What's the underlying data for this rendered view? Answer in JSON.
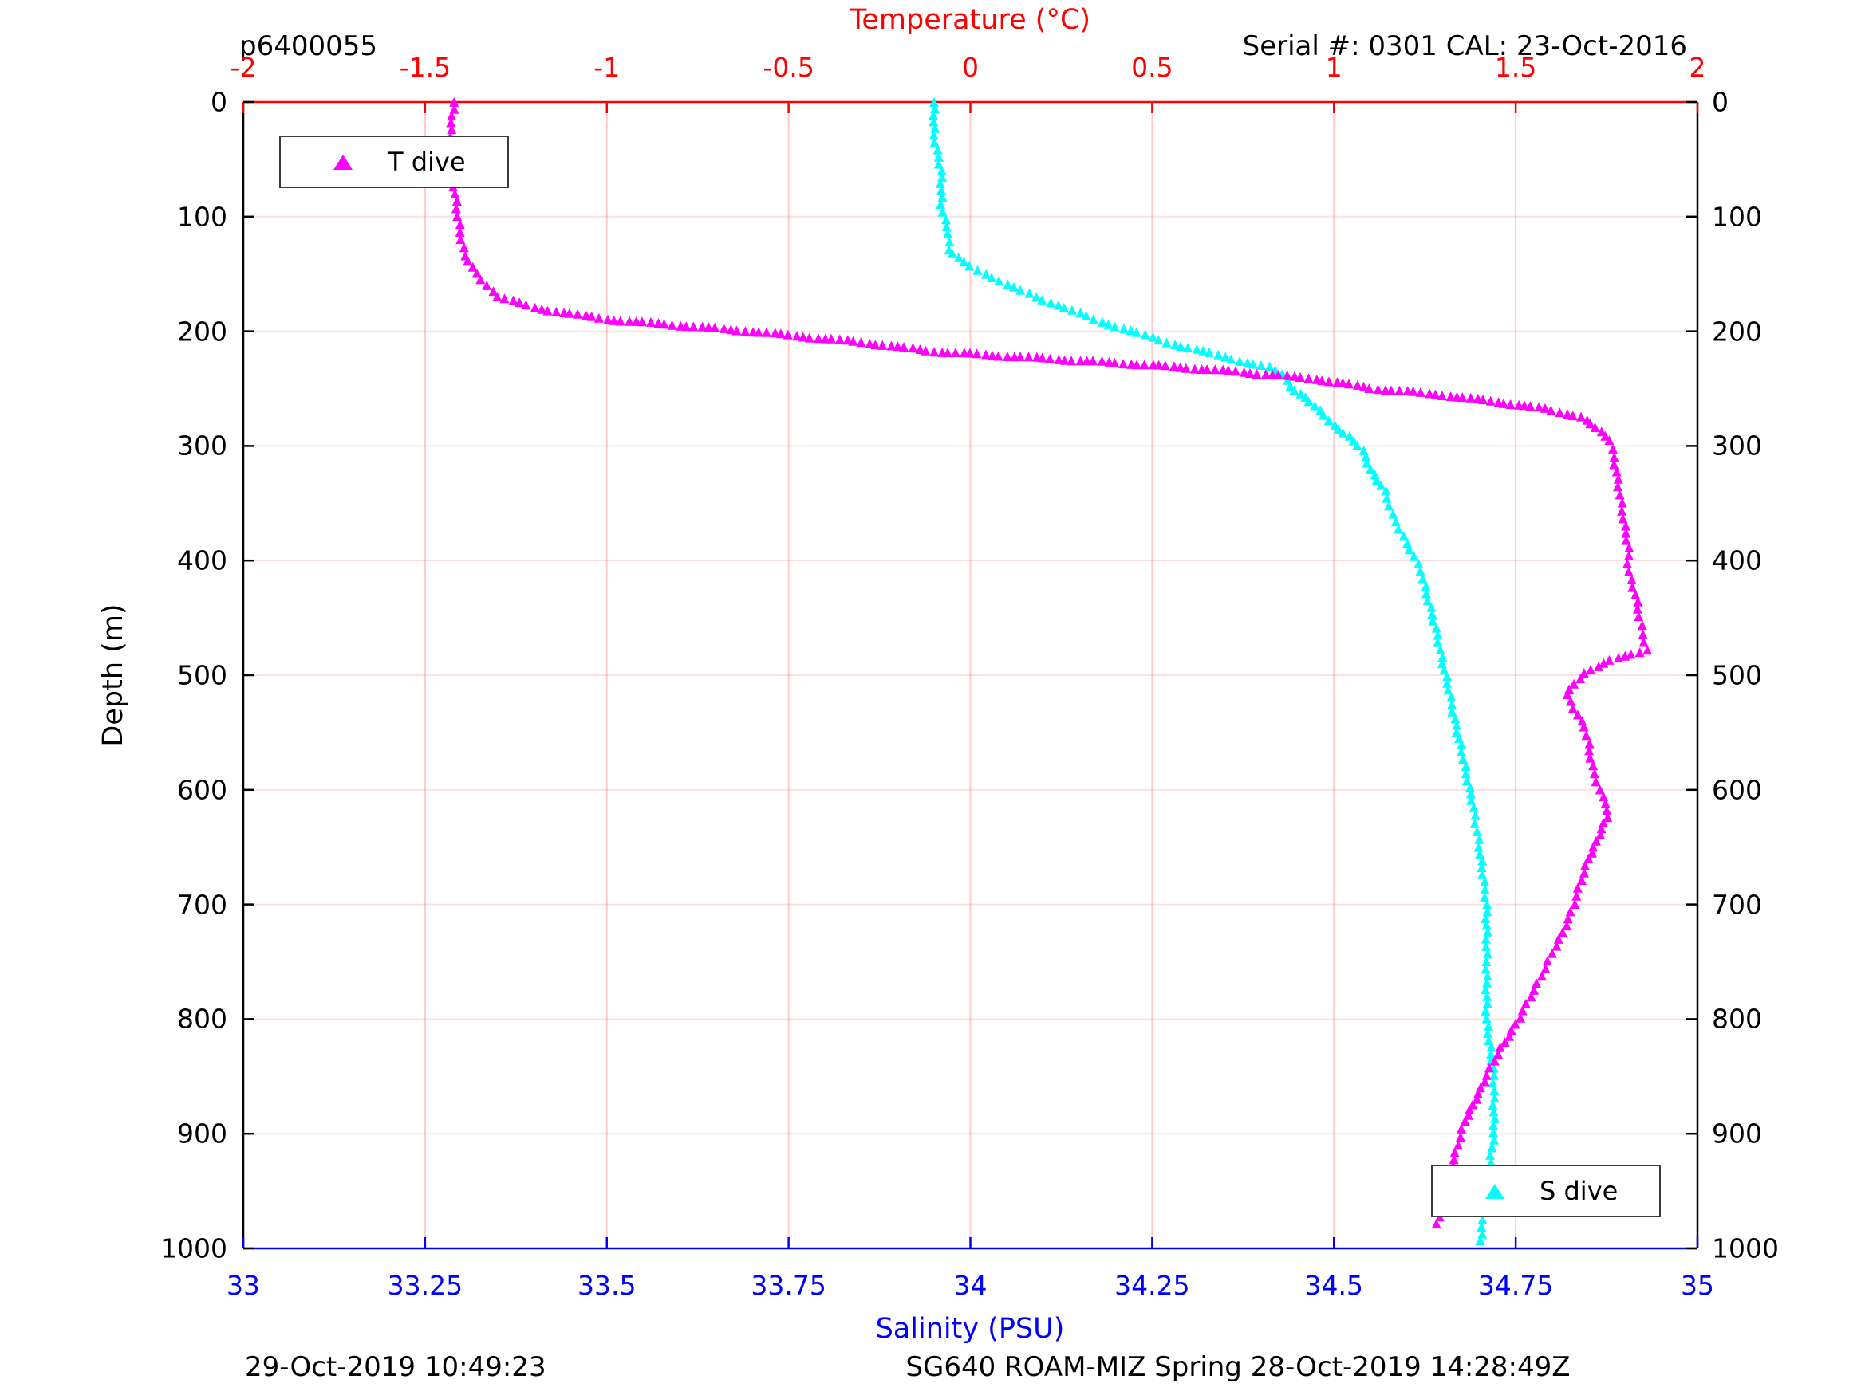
{
  "figure": {
    "top_left_label": "p6400055",
    "serial_label": "Serial #: 0301  CAL: 23-Oct-2016",
    "bottom_left_label": "29-Oct-2019 10:49:23",
    "bottom_center_label": "SG640 ROAM-MIZ Spring 28-Oct-2019 14:28:49Z"
  },
  "colors": {
    "temperature_axis": "#ff0000",
    "salinity_axis": "#0000ff",
    "depth_axis": "#000000",
    "t_dive_series": "#ff00ff",
    "s_dive_series": "#00ffff",
    "grid_vertical": "rgba(255,0,0,0.20)",
    "grid_horizontal": "rgba(255,0,0,0.12)",
    "background": "#ffffff"
  },
  "chart_data": {
    "type": "scatter",
    "title": "",
    "axes": {
      "top": {
        "label": "Temperature (°C)",
        "range": [
          -2,
          2
        ],
        "ticks": [
          -2,
          -1.5,
          -1,
          -0.5,
          0,
          0.5,
          1,
          1.5,
          2
        ],
        "tick_labels": [
          "-2",
          "-1.5",
          "-1",
          "-0.5",
          "0",
          "0.5",
          "1",
          "1.5",
          "2"
        ],
        "color": "#ff0000"
      },
      "bottom": {
        "label": "Salinity (PSU)",
        "range": [
          33,
          35
        ],
        "ticks": [
          33,
          33.25,
          33.5,
          33.75,
          34,
          34.25,
          34.5,
          34.75,
          35
        ],
        "tick_labels": [
          "33",
          "33.25",
          "33.5",
          "33.75",
          "34",
          "34.25",
          "34.5",
          "34.75",
          "35"
        ],
        "color": "#0000ff"
      },
      "left": {
        "label": "Depth (m)",
        "range": [
          0,
          1000
        ],
        "reversed": true,
        "ticks": [
          0,
          100,
          200,
          300,
          400,
          500,
          600,
          700,
          800,
          900,
          1000
        ],
        "tick_labels": [
          "0",
          "100",
          "200",
          "300",
          "400",
          "500",
          "600",
          "700",
          "800",
          "900",
          "1000"
        ],
        "color": "#000000"
      },
      "right": {
        "label": "",
        "range": [
          0,
          1000
        ],
        "reversed": true,
        "ticks": [
          0,
          100,
          200,
          300,
          400,
          500,
          600,
          700,
          800,
          900,
          1000
        ],
        "tick_labels": [
          "0",
          "100",
          "200",
          "300",
          "400",
          "500",
          "600",
          "700",
          "800",
          "900",
          "1000"
        ],
        "color": "#000000"
      }
    },
    "grid": true,
    "series": [
      {
        "name": "S dive",
        "axis": "bottom",
        "marker": "triangle",
        "color": "#00ffff",
        "points_depth_value": [
          [
            0,
            33.95
          ],
          [
            30,
            33.95
          ],
          [
            60,
            33.96
          ],
          [
            90,
            33.96
          ],
          [
            115,
            33.97
          ],
          [
            130,
            33.97
          ],
          [
            140,
            33.99
          ],
          [
            150,
            34.02
          ],
          [
            160,
            34.05
          ],
          [
            170,
            34.09
          ],
          [
            180,
            34.13
          ],
          [
            190,
            34.17
          ],
          [
            200,
            34.22
          ],
          [
            210,
            34.27
          ],
          [
            218,
            34.32
          ],
          [
            226,
            34.37
          ],
          [
            232,
            34.41
          ],
          [
            238,
            34.43
          ],
          [
            248,
            34.44
          ],
          [
            258,
            34.46
          ],
          [
            270,
            34.48
          ],
          [
            282,
            34.5
          ],
          [
            292,
            34.52
          ],
          [
            305,
            34.54
          ],
          [
            320,
            34.55
          ],
          [
            340,
            34.57
          ],
          [
            360,
            34.58
          ],
          [
            385,
            34.6
          ],
          [
            410,
            34.62
          ],
          [
            435,
            34.63
          ],
          [
            460,
            34.64
          ],
          [
            490,
            34.65
          ],
          [
            520,
            34.66
          ],
          [
            550,
            34.67
          ],
          [
            580,
            34.68
          ],
          [
            610,
            34.69
          ],
          [
            650,
            34.7
          ],
          [
            700,
            34.71
          ],
          [
            750,
            34.71
          ],
          [
            800,
            34.71
          ],
          [
            850,
            34.72
          ],
          [
            900,
            34.72
          ],
          [
            950,
            34.71
          ],
          [
            1000,
            34.7
          ]
        ]
      },
      {
        "name": "T dive",
        "axis": "top",
        "marker": "triangle",
        "color": "#ff00ff",
        "points_depth_value": [
          [
            0,
            -1.42
          ],
          [
            25,
            -1.43
          ],
          [
            50,
            -1.43
          ],
          [
            75,
            -1.42
          ],
          [
            100,
            -1.41
          ],
          [
            120,
            -1.4
          ],
          [
            135,
            -1.39
          ],
          [
            150,
            -1.36
          ],
          [
            160,
            -1.33
          ],
          [
            170,
            -1.3
          ],
          [
            180,
            -1.2
          ],
          [
            190,
            -1.0
          ],
          [
            200,
            -0.62
          ],
          [
            210,
            -0.3
          ],
          [
            218,
            -0.1
          ],
          [
            224,
            0.2
          ],
          [
            230,
            0.5
          ],
          [
            236,
            0.75
          ],
          [
            242,
            0.95
          ],
          [
            250,
            1.1
          ],
          [
            256,
            1.3
          ],
          [
            262,
            1.45
          ],
          [
            268,
            1.58
          ],
          [
            275,
            1.68
          ],
          [
            285,
            1.72
          ],
          [
            295,
            1.76
          ],
          [
            310,
            1.77
          ],
          [
            330,
            1.78
          ],
          [
            350,
            1.79
          ],
          [
            370,
            1.8
          ],
          [
            390,
            1.81
          ],
          [
            410,
            1.81
          ],
          [
            430,
            1.83
          ],
          [
            450,
            1.84
          ],
          [
            465,
            1.85
          ],
          [
            478,
            1.86
          ],
          [
            488,
            1.76
          ],
          [
            498,
            1.69
          ],
          [
            508,
            1.66
          ],
          [
            518,
            1.64
          ],
          [
            530,
            1.66
          ],
          [
            545,
            1.69
          ],
          [
            560,
            1.7
          ],
          [
            580,
            1.71
          ],
          [
            600,
            1.73
          ],
          [
            612,
            1.75
          ],
          [
            625,
            1.75
          ],
          [
            640,
            1.73
          ],
          [
            660,
            1.7
          ],
          [
            680,
            1.68
          ],
          [
            700,
            1.66
          ],
          [
            725,
            1.63
          ],
          [
            750,
            1.59
          ],
          [
            775,
            1.55
          ],
          [
            800,
            1.51
          ],
          [
            825,
            1.46
          ],
          [
            850,
            1.42
          ],
          [
            870,
            1.39
          ],
          [
            890,
            1.36
          ],
          [
            910,
            1.34
          ],
          [
            935,
            1.32
          ],
          [
            960,
            1.3
          ],
          [
            985,
            1.28
          ]
        ]
      }
    ],
    "legend": {
      "t_dive_label": "T dive",
      "s_dive_label": "S dive"
    }
  }
}
